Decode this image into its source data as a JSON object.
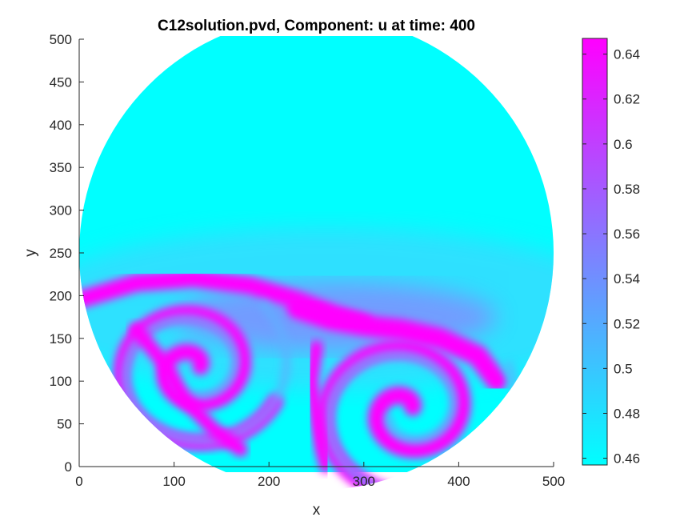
{
  "chart_data": {
    "type": "heatmap",
    "title": "C12solution.pvd, Component: u at time: 400",
    "xlabel": "x",
    "ylabel": "y",
    "xlim": [
      0,
      500
    ],
    "ylim": [
      0,
      500
    ],
    "x_ticks": [
      "0",
      "100",
      "200",
      "300",
      "400",
      "500"
    ],
    "y_ticks": [
      "0",
      "50",
      "100",
      "150",
      "200",
      "250",
      "300",
      "350",
      "400",
      "450",
      "500"
    ],
    "domain": {
      "shape": "circle",
      "center": [
        250,
        250
      ],
      "radius": 250
    },
    "colorbar": {
      "min": 0.457,
      "max": 0.647,
      "ticks": [
        "0.46",
        "0.48",
        "0.5",
        "0.52",
        "0.54",
        "0.56",
        "0.58",
        "0.6",
        "0.62",
        "0.64"
      ],
      "colormap": "cool",
      "color_low": "#00ffff",
      "color_high": "#ff00ff"
    },
    "features": [
      {
        "type": "spiral",
        "center": [
          120,
          115
        ],
        "winding": "counterclockwise"
      },
      {
        "type": "spiral",
        "center": [
          345,
          65
        ],
        "winding": "counterclockwise"
      },
      {
        "type": "high-u band",
        "region": "y 140-220 across lower half"
      }
    ]
  }
}
